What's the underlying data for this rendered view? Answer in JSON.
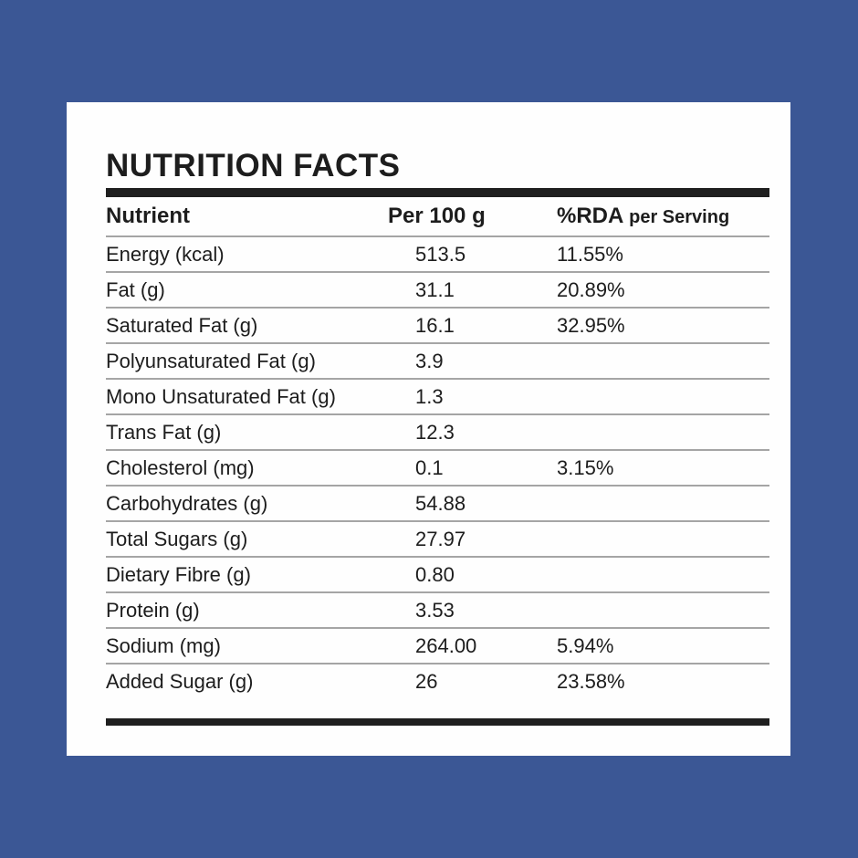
{
  "title": "NUTRITION FACTS",
  "colors": {
    "page_background": "#3b5795",
    "card_background": "#fefefe",
    "text": "#1d1d1d",
    "thick_bar": "#1f1f1f",
    "row_rule": "#a5a5a5"
  },
  "table": {
    "headers": {
      "nutrient": "Nutrient",
      "per_100g": "Per 100 g",
      "rda_main": "%RDA",
      "rda_sub": "per Serving"
    },
    "rows": [
      {
        "nutrient": "Energy (kcal)",
        "per_100g": "513.5",
        "rda": "11.55%"
      },
      {
        "nutrient": "Fat (g)",
        "per_100g": "31.1",
        "rda": "20.89%"
      },
      {
        "nutrient": "Saturated Fat (g)",
        "per_100g": "16.1",
        "rda": "32.95%"
      },
      {
        "nutrient": "Polyunsaturated Fat (g)",
        "per_100g": "3.9",
        "rda": ""
      },
      {
        "nutrient": "Mono Unsaturated Fat (g)",
        "per_100g": "1.3",
        "rda": ""
      },
      {
        "nutrient": "Trans Fat (g)",
        "per_100g": "12.3",
        "rda": ""
      },
      {
        "nutrient": "Cholesterol (mg)",
        "per_100g": "0.1",
        "rda": "3.15%"
      },
      {
        "nutrient": "Carbohydrates (g)",
        "per_100g": "54.88",
        "rda": ""
      },
      {
        "nutrient": "Total Sugars (g)",
        "per_100g": "27.97",
        "rda": ""
      },
      {
        "nutrient": "Dietary Fibre (g)",
        "per_100g": "0.80",
        "rda": ""
      },
      {
        "nutrient": "Protein (g)",
        "per_100g": "3.53",
        "rda": ""
      },
      {
        "nutrient": "Sodium (mg)",
        "per_100g": "264.00",
        "rda": "5.94%"
      },
      {
        "nutrient": "Added Sugar (g)",
        "per_100g": "26",
        "rda": "23.58%"
      }
    ]
  }
}
